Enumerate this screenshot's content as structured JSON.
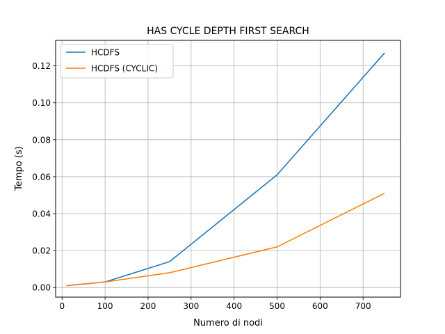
{
  "chart_data": {
    "type": "line",
    "title": "HAS CYCLE DEPTH FIRST SEARCH",
    "xlabel": "Numero di nodi",
    "ylabel": "Tempo (s)",
    "xlim": [
      -15,
      787
    ],
    "ylim": [
      -0.0052,
      0.1338
    ],
    "xticks": [
      0,
      100,
      200,
      300,
      400,
      500,
      600,
      700
    ],
    "xtick_labels": [
      "0",
      "100",
      "200",
      "300",
      "400",
      "500",
      "600",
      "700"
    ],
    "yticks": [
      0.0,
      0.02,
      0.04,
      0.06,
      0.08,
      0.1,
      0.12
    ],
    "ytick_labels": [
      "0.00",
      "0.02",
      "0.04",
      "0.06",
      "0.08",
      "0.10",
      "0.12"
    ],
    "grid": true,
    "legend_position": "top-left",
    "series": [
      {
        "name": "HCDFS",
        "color": "#1f77b4",
        "x": [
          10,
          100,
          250,
          500,
          750
        ],
        "values": [
          0.001,
          0.003,
          0.014,
          0.061,
          0.127
        ]
      },
      {
        "name": "HCDFS (CYCLIC)",
        "color": "#ff7f0e",
        "x": [
          10,
          100,
          250,
          500,
          750
        ],
        "values": [
          0.001,
          0.003,
          0.008,
          0.022,
          0.051
        ]
      }
    ]
  }
}
